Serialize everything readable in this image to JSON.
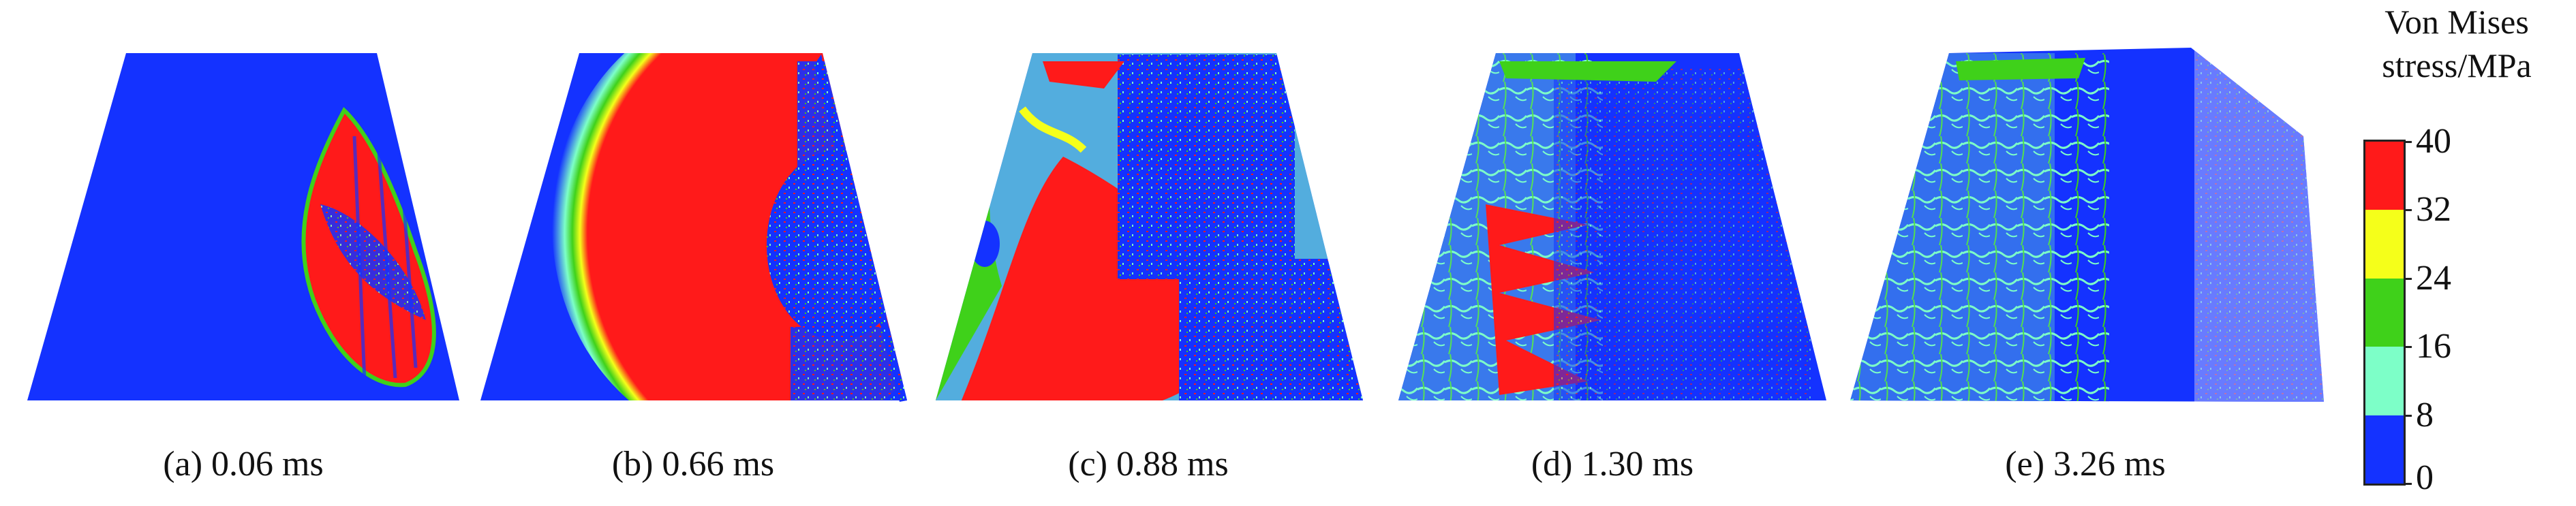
{
  "panels": [
    {
      "id": "a",
      "caption": "(a) 0.06 ms"
    },
    {
      "id": "b",
      "caption": "(b) 0.66 ms"
    },
    {
      "id": "c",
      "caption": "(c) 0.88 ms"
    },
    {
      "id": "d",
      "caption": "(d) 1.30 ms"
    },
    {
      "id": "e",
      "caption": "(e) 3.26 ms"
    }
  ],
  "legend": {
    "title_line1": "Von Mises",
    "title_line2": "stress/MPa",
    "ticks": [
      "40",
      "32",
      "24",
      "16",
      "8",
      "0"
    ],
    "colors": {
      "band_32_40": "#ff1a1a",
      "band_24_32": "#f5ff1a",
      "band_16_24": "#3fd11a",
      "band_8_16": "#7dffc8",
      "band_0_8": "#1432ff"
    }
  },
  "colors": {
    "low": "#1432ff",
    "high": "#ff1a1a",
    "yellow": "#f5ff1a",
    "green": "#3fd11a",
    "cyan": "#7dffc8"
  }
}
